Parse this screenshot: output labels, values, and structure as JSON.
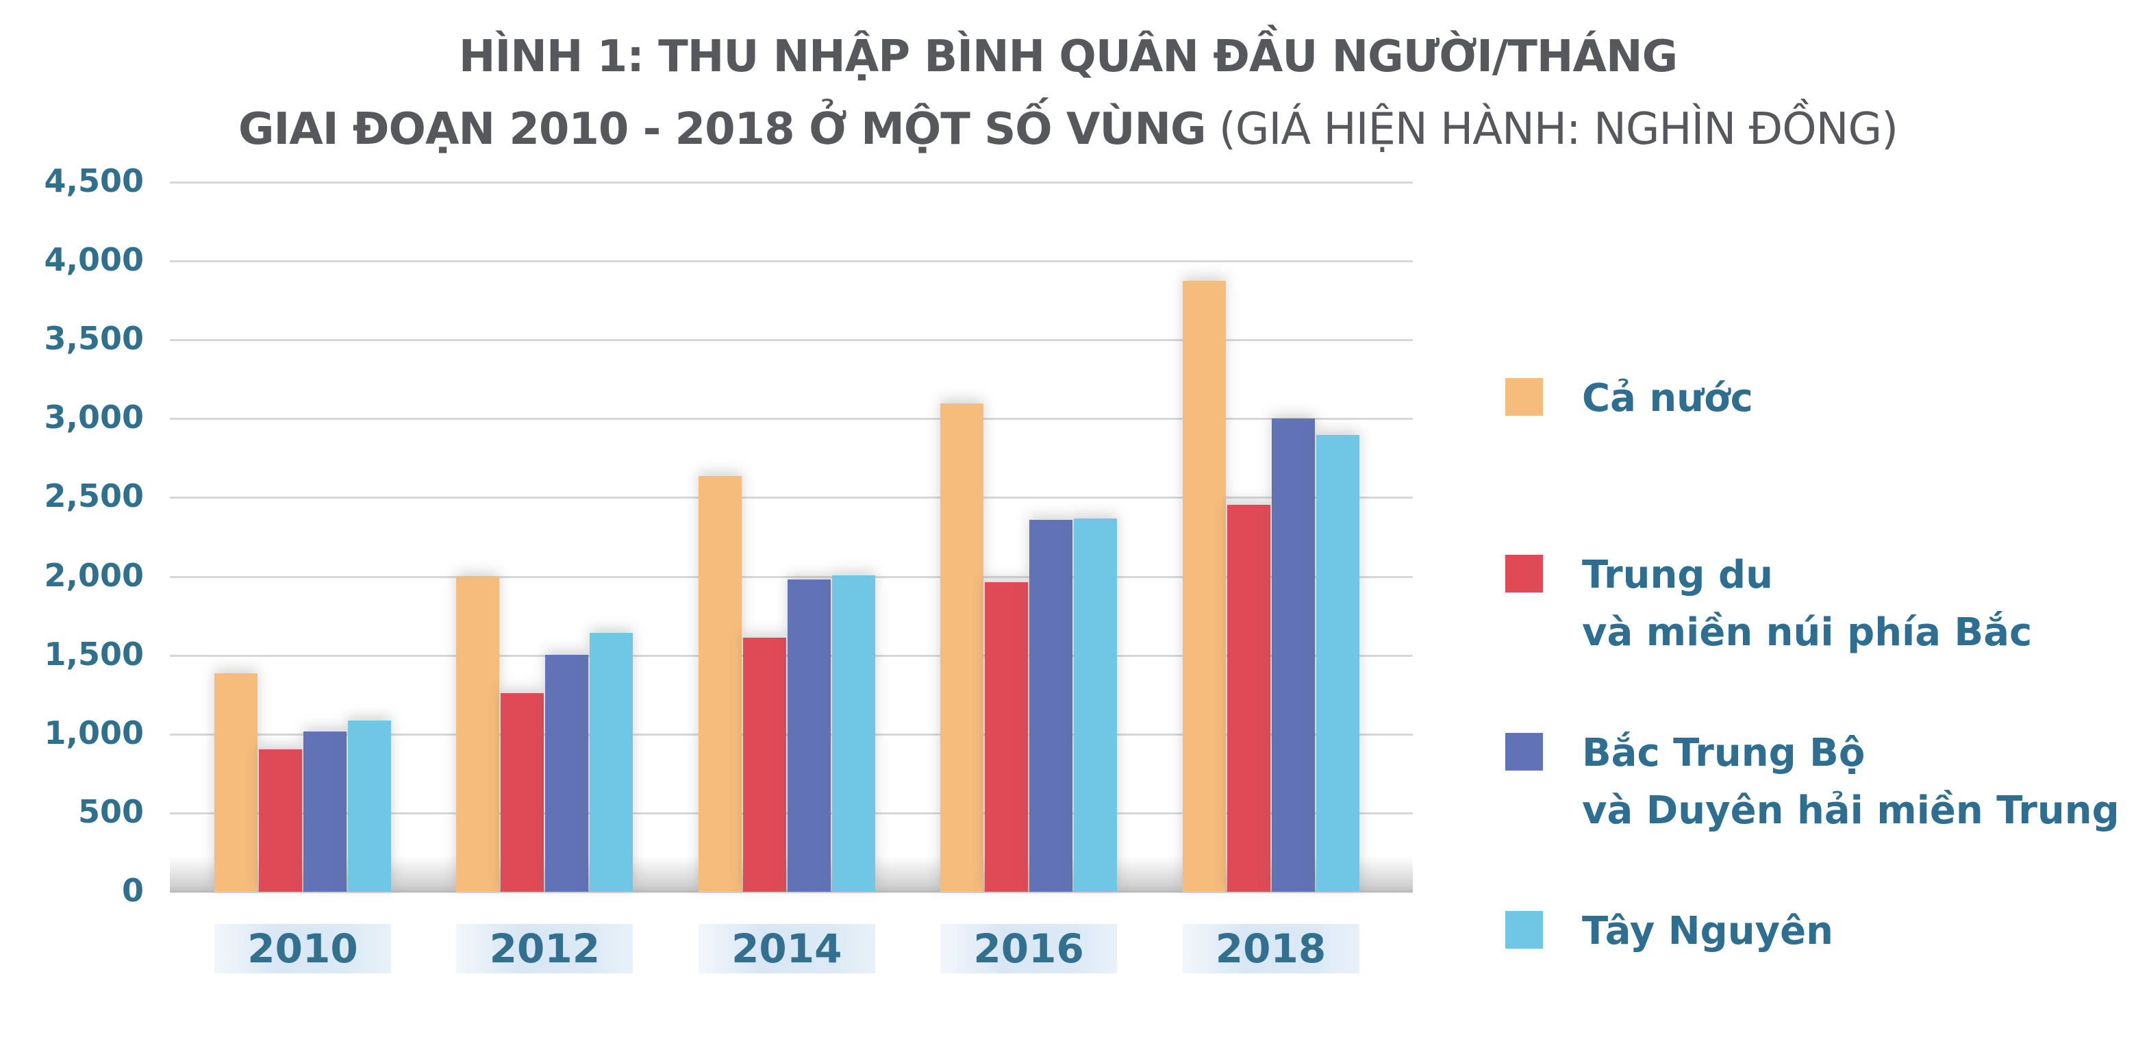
{
  "page": {
    "background": "#FFFFFF"
  },
  "title": {
    "line1": "HÌNH 1: THU NHẬP BÌNH QUÂN ĐẦU NGƯỜI/THÁNG",
    "line2_bold": "GIAI ĐOẠN 2010 - 2018 Ở MỘT SỐ VÙNG",
    "line2_regular": " (GIÁ HIỆN HÀNH: NGHÌN ĐỒNG)",
    "color": "#56585C"
  },
  "axis": {
    "tick_color": "#30708F",
    "grid_color": "#D8D8D8"
  },
  "chart_data": {
    "type": "bar",
    "title": "HÌNH 1: THU NHẬP BÌNH QUÂN ĐẦU NGƯỜI/THÁNG GIAI ĐOẠN 2010 - 2018 Ở MỘT SỐ VÙNG (GIÁ HIỆN HÀNH: NGHÌN ĐỒNG)",
    "unit": "nghìn đồng",
    "categories": [
      "2010",
      "2012",
      "2014",
      "2016",
      "2018"
    ],
    "series": [
      {
        "name": "Cả nước",
        "color": "#F6BC7B",
        "values": [
          1387,
          2000,
          2637,
          3098,
          3876
        ]
      },
      {
        "name": "Trung du và miền núi phía Bắc",
        "color": "#E04A57",
        "values": [
          905,
          1258,
          1613,
          1963,
          2455
        ]
      },
      {
        "name": "Bắc Trung Bộ và Duyên hải miền Trung",
        "color": "#6173B6",
        "values": [
          1018,
          1505,
          1982,
          2358,
          3000
        ]
      },
      {
        "name": "Tây Nguyên",
        "color": "#70C6E5",
        "values": [
          1088,
          1643,
          2008,
          2366,
          2896
        ]
      }
    ],
    "ylim": [
      0,
      4500
    ],
    "ytick_step": 500,
    "ytick_labels": [
      "4,500",
      "4,000",
      "3,500",
      "3,000",
      "2,500",
      "2,000",
      "1,500",
      "1,000",
      "500",
      "0"
    ],
    "xlabel": "",
    "ylabel": "",
    "grid": true,
    "legend_position": "right",
    "legend_labels": [
      [
        "Cả nước"
      ],
      [
        "Trung du",
        "và miền núi phía Bắc"
      ],
      [
        "Bắc Trung Bộ",
        "và Duyên hải miền Trung"
      ],
      [
        "Tây Nguyên"
      ]
    ]
  }
}
